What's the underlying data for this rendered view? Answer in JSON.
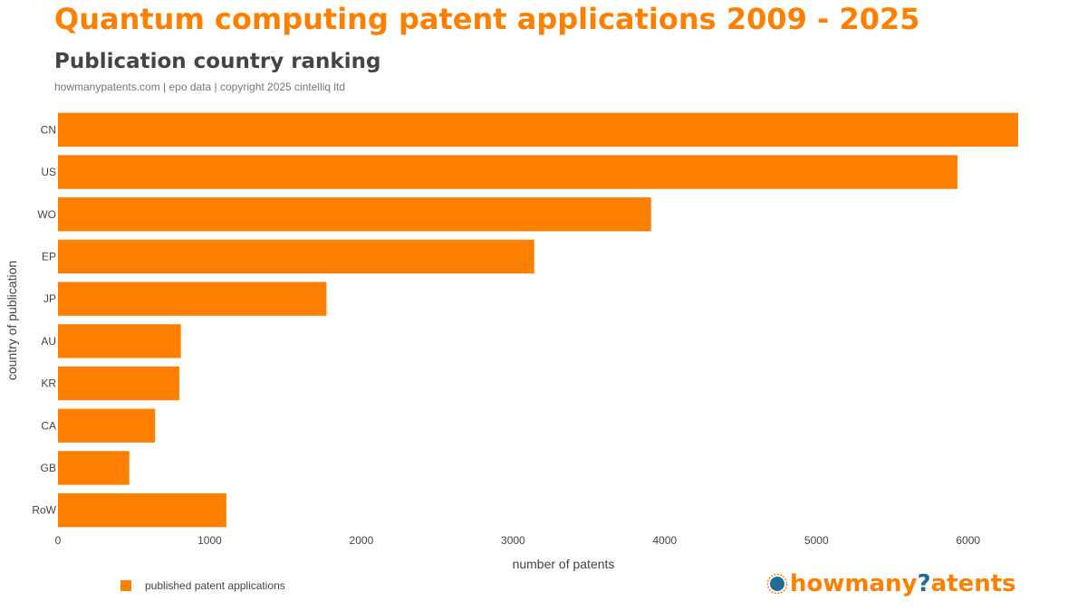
{
  "chart_data": {
    "type": "bar",
    "orientation": "horizontal",
    "title": "Quantum computing patent applications 2009 - 2025",
    "subtitle": "Publication country ranking",
    "source": "howmanypatents.com | epo data | copyright 2025 cintelliq ltd",
    "categories": [
      "CN",
      "US",
      "WO",
      "EP",
      "JP",
      "AU",
      "KR",
      "CA",
      "GB",
      "RoW"
    ],
    "series": [
      {
        "name": "published patent applications",
        "values": [
          6330,
          5930,
          3910,
          3140,
          1770,
          810,
          800,
          640,
          470,
          1110
        ],
        "color": "#ff8000"
      }
    ],
    "xlabel": "number of patents",
    "ylabel": "country of publication",
    "xlim": [
      0,
      6330
    ],
    "xticks": [
      0,
      1000,
      2000,
      3000,
      4000,
      5000,
      6000
    ],
    "grid": false,
    "legend_position": "bottom-left"
  },
  "logo": {
    "prefix": "howmany",
    "mark": "?",
    "suffix": "atents",
    "icon": "globe-icon"
  }
}
